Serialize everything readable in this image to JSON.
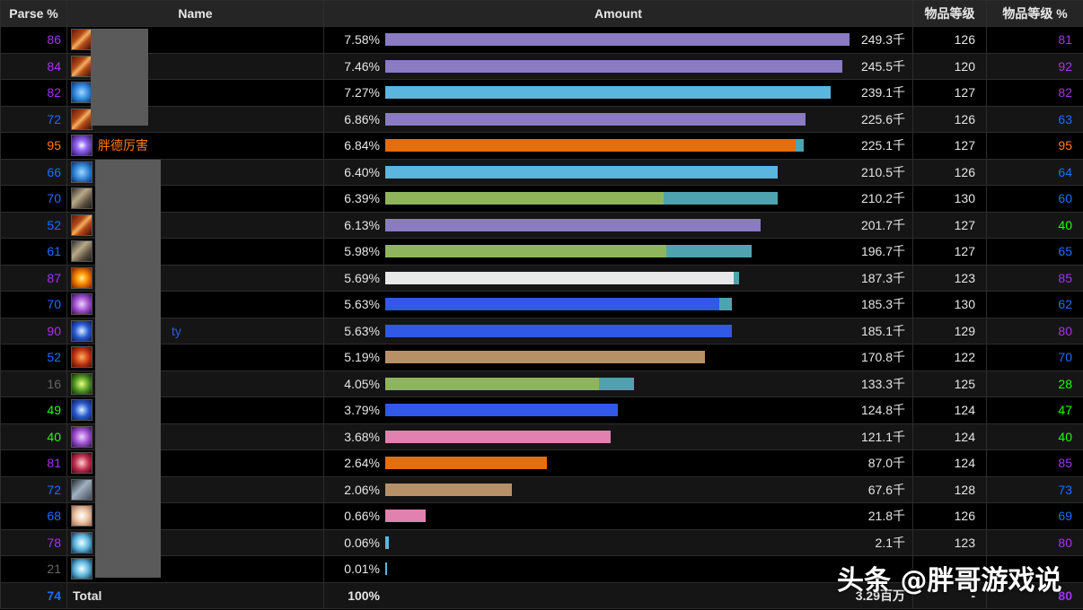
{
  "headers": {
    "parse": "Parse %",
    "name": "Name",
    "amount": "Amount",
    "ilvl": "物品等级",
    "ilvl_pct": "物品等级 %"
  },
  "colors": {
    "parse_orange": "#ff8000",
    "parse_purple": "#a335ee",
    "parse_blue": "#1a6eff",
    "parse_green": "#1eff00",
    "parse_gray": "#666666"
  },
  "rows": [
    {
      "parse": "86",
      "parse_color": "#a335ee",
      "icon": "rogue-icon",
      "icon_class": "cls-rogue",
      "name": "",
      "name_color": "#fff468",
      "pct": "7.58%",
      "bars": [
        {
          "frac": 1.0,
          "color": "#8a7bc2"
        }
      ],
      "amount": "249.3千",
      "ilvl": "126",
      "ilvl_pct": "81",
      "ilvl_color": "#a335ee"
    },
    {
      "parse": "84",
      "parse_color": "#a335ee",
      "icon": "rogue-icon",
      "icon_class": "cls-rogue",
      "name": "",
      "name_color": "#fff468",
      "pct": "7.46%",
      "bars": [
        {
          "frac": 0.984,
          "color": "#8a7bc2"
        }
      ],
      "amount": "245.5千",
      "ilvl": "120",
      "ilvl_pct": "92",
      "ilvl_color": "#a335ee"
    },
    {
      "parse": "82",
      "parse_color": "#a335ee",
      "icon": "frost-mage-icon",
      "icon_class": "cls-frost",
      "name": "",
      "name_color": "#3fc7eb",
      "pct": "7.27%",
      "bars": [
        {
          "frac": 0.959,
          "color": "#5ab6de"
        }
      ],
      "amount": "239.1千",
      "ilvl": "127",
      "ilvl_pct": "82",
      "ilvl_color": "#a335ee"
    },
    {
      "parse": "72",
      "parse_color": "#1a6eff",
      "icon": "rogue-icon",
      "icon_class": "cls-rogue",
      "name": "",
      "name_color": "#fff468",
      "pct": "6.86%",
      "bars": [
        {
          "frac": 0.905,
          "color": "#8a7bc2"
        }
      ],
      "amount": "225.6千",
      "ilvl": "126",
      "ilvl_pct": "63",
      "ilvl_color": "#1a6eff"
    },
    {
      "parse": "95",
      "parse_color": "#ff8000",
      "icon": "feral-druid-icon",
      "icon_class": "cls-feral",
      "name": "胖德厉害",
      "name_color": "#ff7c0a",
      "pct": "6.84%",
      "bars": [
        {
          "frac": 0.884,
          "color": "#e66d0c"
        },
        {
          "frac": 0.017,
          "color": "#4fa3b0"
        }
      ],
      "amount": "225.1千",
      "ilvl": "127",
      "ilvl_pct": "95",
      "ilvl_color": "#ff8000"
    },
    {
      "parse": "66",
      "parse_color": "#1a6eff",
      "icon": "frost-mage-icon",
      "icon_class": "cls-frost",
      "name": "",
      "name_color": "#3fc7eb",
      "pct": "6.40%",
      "bars": [
        {
          "frac": 0.845,
          "color": "#5ab6de"
        }
      ],
      "amount": "210.5千",
      "ilvl": "126",
      "ilvl_pct": "64",
      "ilvl_color": "#1a6eff"
    },
    {
      "parse": "70",
      "parse_color": "#1a6eff",
      "icon": "hunter-icon",
      "icon_class": "cls-war",
      "name": "",
      "name_color": "#aad372",
      "pct": "6.39%",
      "bars": [
        {
          "frac": 0.599,
          "color": "#8fb55c"
        },
        {
          "frac": 0.246,
          "color": "#4fa3b0"
        }
      ],
      "amount": "210.2千",
      "ilvl": "130",
      "ilvl_pct": "60",
      "ilvl_color": "#1a6eff"
    },
    {
      "parse": "52",
      "parse_color": "#1a6eff",
      "icon": "rogue-icon",
      "icon_class": "cls-rogue",
      "name": "",
      "name_color": "#fff468",
      "pct": "6.13%",
      "bars": [
        {
          "frac": 0.809,
          "color": "#8a7bc2"
        }
      ],
      "amount": "201.7千",
      "ilvl": "127",
      "ilvl_pct": "40",
      "ilvl_color": "#1eff00"
    },
    {
      "parse": "61",
      "parse_color": "#1a6eff",
      "icon": "hunter-icon",
      "icon_class": "cls-war",
      "name": "",
      "name_color": "#aad372",
      "pct": "5.98%",
      "bars": [
        {
          "frac": 0.606,
          "color": "#8fb55c"
        },
        {
          "frac": 0.183,
          "color": "#4fa3b0"
        }
      ],
      "amount": "196.7千",
      "ilvl": "127",
      "ilvl_pct": "65",
      "ilvl_color": "#1a6eff"
    },
    {
      "parse": "87",
      "parse_color": "#a335ee",
      "icon": "fire-priest-icon",
      "icon_class": "cls-fire",
      "name": "",
      "name_color": "#ffffff",
      "pct": "5.69%",
      "bars": [
        {
          "frac": 0.751,
          "color": "#e8e8e8"
        },
        {
          "frac": 0.011,
          "color": "#4fa3b0"
        }
      ],
      "amount": "187.3千",
      "ilvl": "123",
      "ilvl_pct": "85",
      "ilvl_color": "#a335ee"
    },
    {
      "parse": "70",
      "parse_color": "#1a6eff",
      "icon": "arcane-icon",
      "icon_class": "cls-arcane",
      "name": "",
      "name_color": "#2f59e6",
      "pct": "5.63%",
      "bars": [
        {
          "frac": 0.719,
          "color": "#2f59e6"
        },
        {
          "frac": 0.028,
          "color": "#4fa3b0"
        }
      ],
      "amount": "185.3千",
      "ilvl": "130",
      "ilvl_pct": "62",
      "ilvl_color": "#1a6eff"
    },
    {
      "parse": "90",
      "parse_color": "#a335ee",
      "icon": "shaman-storm-icon",
      "icon_class": "cls-storm",
      "name": "ty",
      "name_color": "#2f59e6",
      "pct": "5.63%",
      "bars": [
        {
          "frac": 0.747,
          "color": "#2f59e6"
        }
      ],
      "amount": "185.1千",
      "ilvl": "129",
      "ilvl_pct": "80",
      "ilvl_color": "#a335ee"
    },
    {
      "parse": "52",
      "parse_color": "#1a6eff",
      "icon": "warrior-icon",
      "icon_class": "cls-red",
      "name": "",
      "name_color": "#c69b6d",
      "pct": "5.19%",
      "bars": [
        {
          "frac": 0.688,
          "color": "#b89068"
        }
      ],
      "amount": "170.8千",
      "ilvl": "122",
      "ilvl_pct": "70",
      "ilvl_color": "#1a6eff"
    },
    {
      "parse": "16",
      "parse_color": "#666666",
      "icon": "nature-icon",
      "icon_class": "cls-nature",
      "name": "",
      "name_color": "#aad372",
      "pct": "4.05%",
      "bars": [
        {
          "frac": 0.461,
          "color": "#8fb55c"
        },
        {
          "frac": 0.075,
          "color": "#4fa3b0"
        }
      ],
      "amount": "133.3千",
      "ilvl": "125",
      "ilvl_pct": "28",
      "ilvl_color": "#1eff00"
    },
    {
      "parse": "49",
      "parse_color": "#1eff00",
      "icon": "shaman-storm-icon",
      "icon_class": "cls-storm",
      "name": "",
      "name_color": "#2f59e6",
      "pct": "3.79%",
      "bars": [
        {
          "frac": 0.5,
          "color": "#2f59e6"
        }
      ],
      "amount": "124.8千",
      "ilvl": "124",
      "ilvl_pct": "47",
      "ilvl_color": "#1eff00"
    },
    {
      "parse": "40",
      "parse_color": "#1eff00",
      "icon": "arcane-icon",
      "icon_class": "cls-arcane",
      "name": "",
      "name_color": "#f48cba",
      "pct": "3.68%",
      "bars": [
        {
          "frac": 0.486,
          "color": "#e081b0"
        }
      ],
      "amount": "121.1千",
      "ilvl": "124",
      "ilvl_pct": "40",
      "ilvl_color": "#1eff00"
    },
    {
      "parse": "81",
      "parse_color": "#a335ee",
      "icon": "blood-icon",
      "icon_class": "cls-blood",
      "name": "",
      "name_color": "#ff7c0a",
      "pct": "2.64%",
      "bars": [
        {
          "frac": 0.349,
          "color": "#e66d0c"
        }
      ],
      "amount": "87.0千",
      "ilvl": "124",
      "ilvl_pct": "85",
      "ilvl_color": "#a335ee"
    },
    {
      "parse": "72",
      "parse_color": "#1a6eff",
      "icon": "shield-icon",
      "icon_class": "cls-shield",
      "name": "",
      "name_color": "#c69b6d",
      "pct": "2.06%",
      "bars": [
        {
          "frac": 0.272,
          "color": "#b89068"
        }
      ],
      "amount": "67.6千",
      "ilvl": "128",
      "ilvl_pct": "73",
      "ilvl_color": "#1a6eff"
    },
    {
      "parse": "68",
      "parse_color": "#1a6eff",
      "icon": "holy-icon",
      "icon_class": "cls-holy",
      "name": "",
      "name_color": "#f48cba",
      "pct": "0.66%",
      "bars": [
        {
          "frac": 0.087,
          "color": "#e081b0"
        }
      ],
      "amount": "21.8千",
      "ilvl": "126",
      "ilvl_pct": "69",
      "ilvl_color": "#1a6eff"
    },
    {
      "parse": "78",
      "parse_color": "#a335ee",
      "icon": "monk-icon",
      "icon_class": "cls-mist",
      "name": "",
      "name_color": "#00ff98",
      "pct": "0.06%",
      "bars": [
        {
          "frac": 0.008,
          "color": "#5ab6de"
        }
      ],
      "amount": "2.1千",
      "ilvl": "123",
      "ilvl_pct": "80",
      "ilvl_color": "#a335ee"
    },
    {
      "parse": "21",
      "parse_color": "#666666",
      "icon": "monk-icon",
      "icon_class": "cls-mist",
      "name": "",
      "name_color": "#00ff98",
      "pct": "0.01%",
      "bars": [
        {
          "frac": 0.003,
          "color": "#5ab6de"
        }
      ],
      "amount": "",
      "ilvl": "",
      "ilvl_pct": "",
      "ilvl_color": "#1eff00"
    }
  ],
  "total": {
    "parse": "74",
    "parse_color": "#1a6eff",
    "name": "Total",
    "pct": "100%",
    "amount": "3.29百万",
    "ilvl": "-",
    "ilvl_pct": "80",
    "ilvl_color": "#a335ee"
  },
  "watermark": "头条 @胖哥游戏说"
}
